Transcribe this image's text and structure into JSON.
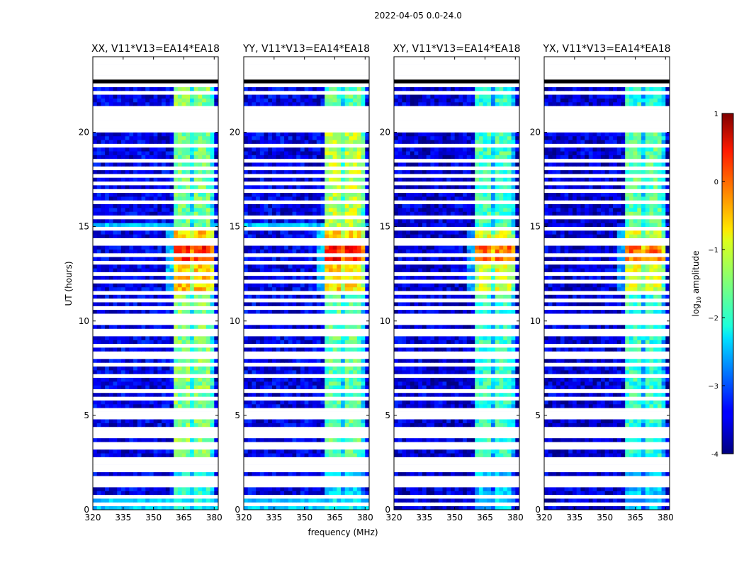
{
  "chart_data": {
    "type": "heatmap",
    "suptitle": "2022-04-05 0.0-24.0",
    "xlabel": "frequency (MHz)",
    "ylabel": "UT (hours)",
    "xlim": [
      320,
      382
    ],
    "ylim": [
      0,
      24
    ],
    "xticks": [
      "320",
      "335",
      "350",
      "365",
      "380"
    ],
    "yticks": [
      "0",
      "5",
      "10",
      "15",
      "20"
    ],
    "colorbar": {
      "label": "log10 amplitude",
      "range": [
        -4,
        1
      ],
      "ticks": [
        "-4",
        "−3",
        "−2",
        "−1",
        "0",
        "1"
      ],
      "colormap": "jet"
    },
    "common_features": {
      "signal_band_mhz": [
        360,
        380
      ],
      "signal_subbands_mhz": [
        [
          360,
          364
        ],
        [
          365,
          369
        ],
        [
          370,
          374
        ],
        [
          375,
          379
        ]
      ],
      "strong_emission_hours": [
        11.5,
        15
      ],
      "peak_emission_hours": [
        13,
        14
      ],
      "enhanced_emission_hours": [
        15,
        20
      ],
      "no_data_hours": [
        [
          2.2,
          2.8
        ],
        [
          20.0,
          21.3
        ]
      ],
      "flagged_row_hours": [
        0.3,
        0.7,
        1.2,
        1.5,
        1.75,
        2.1,
        2.6,
        3.2,
        3.5,
        3.8,
        4.0,
        4.3,
        4.8,
        5.0,
        5.3,
        5.8,
        6.3,
        7.0,
        7.7,
        8.0,
        8.3,
        8.7,
        9.2,
        9.5,
        9.8,
        10.0,
        10.3,
        10.7,
        11.0,
        11.5,
        12.0,
        12.5,
        13.0,
        13.4,
        14.0,
        14.3,
        14.8,
        15.5,
        16.3,
        16.8,
        17.2,
        17.7,
        18.1,
        18.5,
        19.3,
        22.0,
        22.4,
        22.8,
        23.1
      ]
    },
    "panels": [
      {
        "title": "XX, V11*V13=EA14*EA18",
        "background_log_amp": -3.5,
        "band_log_amp": -1.5,
        "peak_log_amp": 0.2,
        "enhanced_log_amp": -1.6,
        "low_freq_excess": true
      },
      {
        "title": "YY, V11*V13=EA14*EA18",
        "background_log_amp": -3.5,
        "band_log_amp": -1.7,
        "peak_log_amp": 0.3,
        "enhanced_log_amp": -1.2,
        "low_freq_excess": true
      },
      {
        "title": "XY, V11*V13=EA14*EA18",
        "background_log_amp": -3.6,
        "band_log_amp": -1.9,
        "peak_log_amp": -0.2,
        "enhanced_log_amp": -1.8,
        "low_freq_excess": false
      },
      {
        "title": "YX, V11*V13=EA14*EA18",
        "background_log_amp": -3.6,
        "band_log_amp": -1.9,
        "peak_log_amp": -0.2,
        "enhanced_log_amp": -1.7,
        "low_freq_excess": false
      }
    ]
  }
}
